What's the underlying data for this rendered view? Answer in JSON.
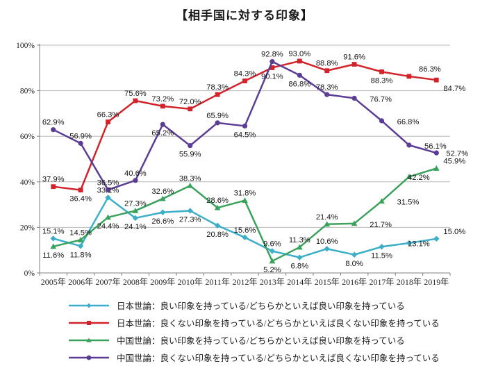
{
  "title": "【相手国に対する印象】",
  "chart_data": {
    "type": "line",
    "categories": [
      "2005年",
      "2006年",
      "2007年",
      "2008年",
      "2009年",
      "2010年",
      "2011年",
      "2012年",
      "2013年",
      "2014年",
      "2015年",
      "2016年",
      "2017年",
      "2018年",
      "2019年"
    ],
    "ylim": [
      0,
      100
    ],
    "y_tick_step": 20,
    "y_tick_suffix": "%",
    "grid": true,
    "legend_position": "bottom-left",
    "value_suffix": "%",
    "series": [
      {
        "name": "日本世論：良い印象を持っている/どちらかといえば良い印象を持っている",
        "color": "#3BAEC8",
        "marker": "diamond",
        "values": [
          15.1,
          11.8,
          33.1,
          24.1,
          26.6,
          27.3,
          20.8,
          15.6,
          9.6,
          6.8,
          10.6,
          8.0,
          11.5,
          13.1,
          15.0
        ],
        "label_side": [
          "a",
          "b",
          "a",
          "b",
          "b",
          "b",
          "b",
          "a",
          "a",
          "b",
          "a",
          "b",
          "b",
          "m",
          "a"
        ]
      },
      {
        "name": "日本世論：良くない印象を持っている/どちらかといえば良くない印象を持っている",
        "color": "#D2232A",
        "marker": "square",
        "values": [
          37.9,
          36.4,
          66.3,
          75.6,
          73.2,
          72.0,
          78.3,
          84.3,
          90.1,
          93.0,
          88.8,
          91.6,
          88.3,
          86.3,
          84.7
        ],
        "label_side": [
          "a",
          "b",
          "a",
          "a",
          "a",
          "a",
          "a",
          "a",
          "b",
          "a",
          "a",
          "a",
          "b",
          "ra",
          "b"
        ]
      },
      {
        "name": "中国世論：良い印象を持っている/どちらかといえば良い印象を持っている",
        "color": "#3AA25C",
        "marker": "triangle",
        "values": [
          11.6,
          14.5,
          24.4,
          27.3,
          32.6,
          38.3,
          28.6,
          31.8,
          5.2,
          11.3,
          21.4,
          21.7,
          31.5,
          42.2,
          45.9
        ],
        "label_side": [
          "b",
          "a",
          "b",
          "a",
          "a",
          "a",
          "a",
          "a",
          "b",
          "a",
          "a",
          "r",
          "r",
          "m",
          "a"
        ]
      },
      {
        "name": "中国世論：良くない印象を持っている/どちらかといえば良くない印象を持っている",
        "color": "#5C3D96",
        "marker": "circle",
        "values": [
          62.9,
          56.9,
          36.5,
          40.6,
          65.2,
          55.9,
          65.9,
          64.5,
          92.8,
          86.8,
          78.3,
          76.7,
          66.8,
          56.1,
          52.7
        ],
        "label_side": [
          "a",
          "a",
          "a",
          "a",
          "b",
          "b",
          "a",
          "b",
          "a",
          "b",
          "a",
          "r",
          "r",
          "r",
          "m"
        ]
      }
    ]
  }
}
